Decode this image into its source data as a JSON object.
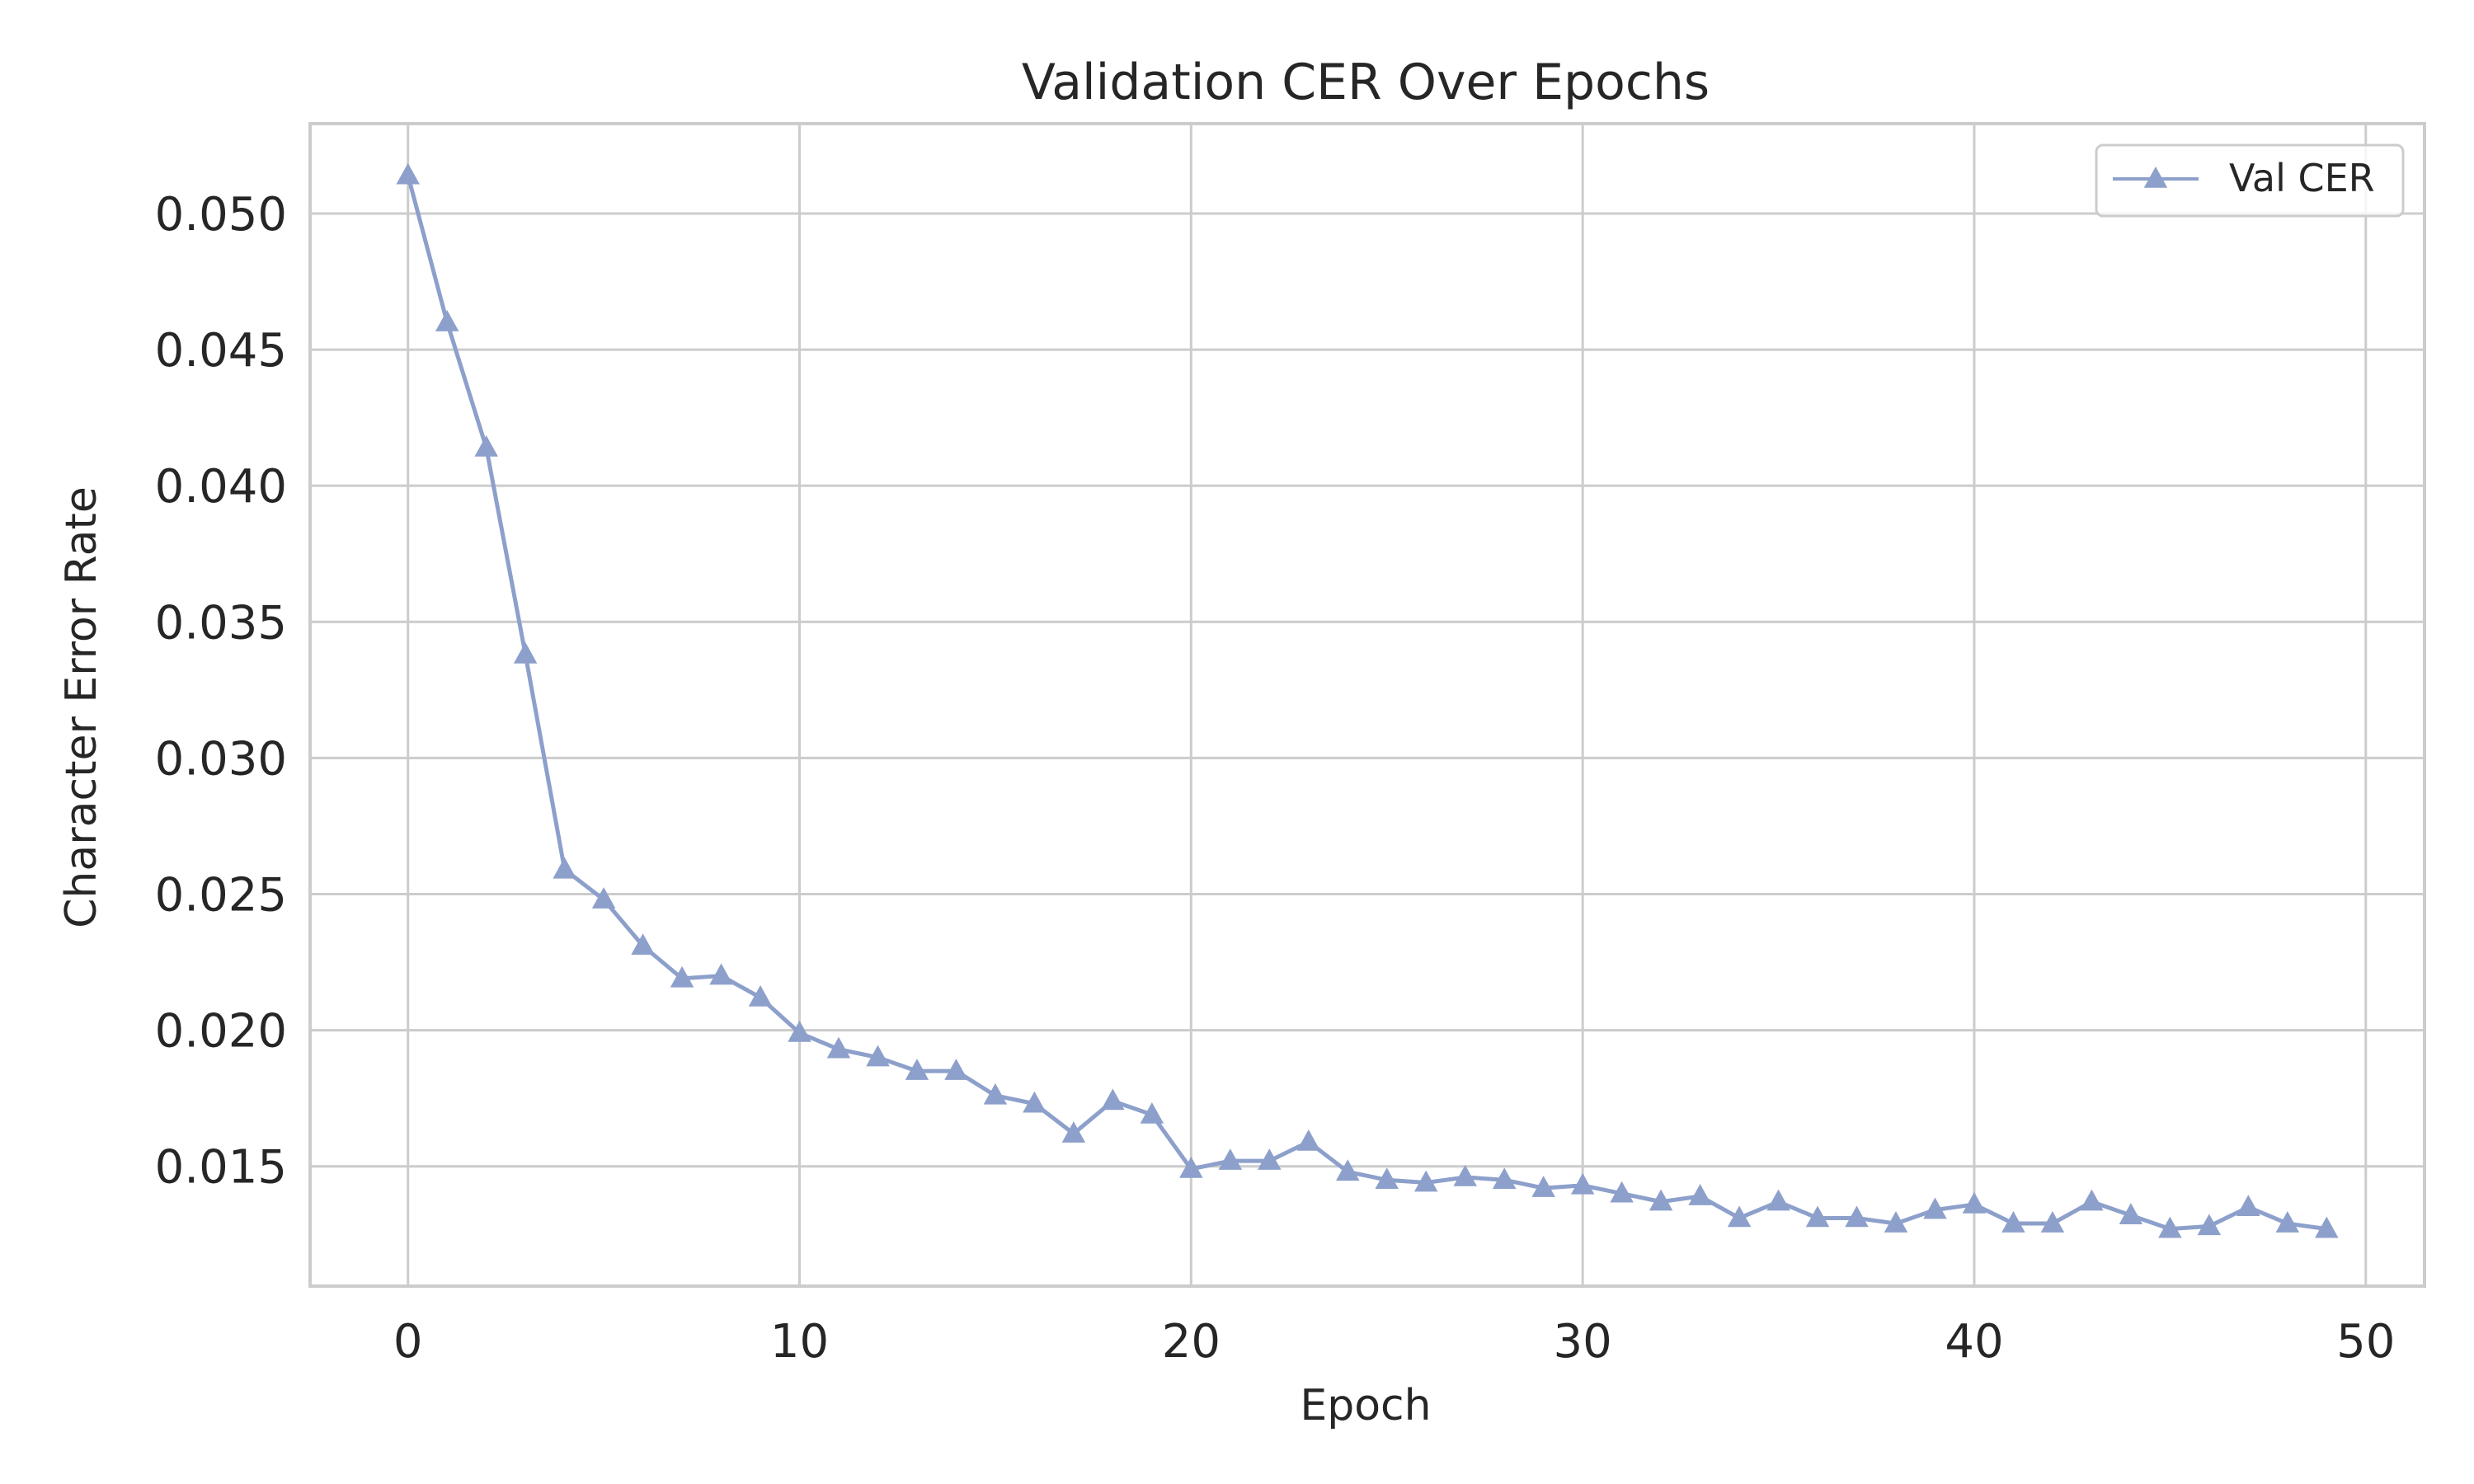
{
  "chart_data": {
    "type": "line",
    "title": "Validation CER Over Epochs",
    "xlabel": "Epoch",
    "ylabel": "Character Error Rate",
    "xlim": [
      -2.5,
      51.5
    ],
    "ylim": [
      0.0106,
      0.0533
    ],
    "xticks": [
      0,
      10,
      20,
      30,
      40,
      50
    ],
    "xtick_labels": [
      "0",
      "10",
      "20",
      "30",
      "40",
      "50"
    ],
    "yticks": [
      0.015,
      0.02,
      0.025,
      0.03,
      0.035,
      0.04,
      0.045,
      0.05
    ],
    "ytick_labels": [
      "0.015",
      "0.020",
      "0.025",
      "0.030",
      "0.035",
      "0.040",
      "0.045",
      "0.050"
    ],
    "grid": true,
    "legend_position": "top-right",
    "series": [
      {
        "name": "Val CER",
        "color": "#8da0cb",
        "marker": "triangle",
        "x": [
          0,
          1,
          2,
          3,
          4,
          5,
          6,
          7,
          8,
          9,
          10,
          11,
          12,
          13,
          14,
          15,
          16,
          17,
          18,
          19,
          20,
          21,
          22,
          23,
          24,
          25,
          26,
          27,
          28,
          29,
          30,
          31,
          32,
          33,
          34,
          35,
          36,
          37,
          38,
          39,
          40,
          41,
          42,
          43,
          44,
          45,
          46,
          47,
          48,
          49
        ],
        "y": [
          0.0514,
          0.046,
          0.0414,
          0.0338,
          0.0259,
          0.0248,
          0.0231,
          0.0219,
          0.022,
          0.0212,
          0.0199,
          0.0193,
          0.019,
          0.0185,
          0.0185,
          0.0176,
          0.0173,
          0.0162,
          0.0174,
          0.0169,
          0.0149,
          0.0152,
          0.0152,
          0.0159,
          0.0148,
          0.0145,
          0.0144,
          0.0146,
          0.0145,
          0.0142,
          0.0143,
          0.014,
          0.0137,
          0.0139,
          0.0131,
          0.0137,
          0.0131,
          0.0131,
          0.0129,
          0.0134,
          0.0136,
          0.0129,
          0.0129,
          0.0137,
          0.0132,
          0.0127,
          0.0128,
          0.0135,
          0.0129,
          0.0127
        ]
      }
    ]
  }
}
